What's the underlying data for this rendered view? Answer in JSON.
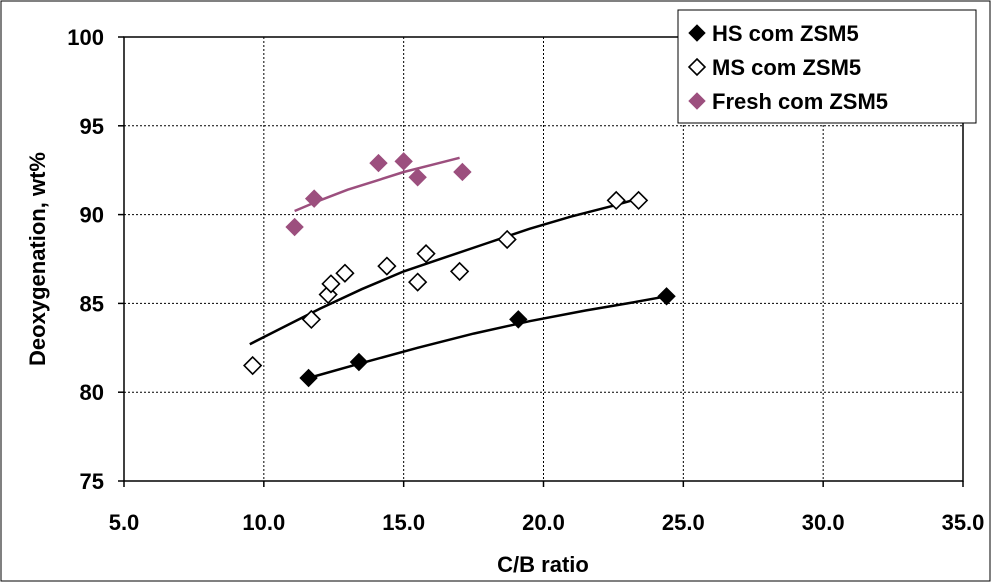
{
  "chart_data": {
    "type": "scatter",
    "title": "",
    "xlabel": "C/B ratio",
    "ylabel": "Deoxygenation, wt%",
    "xlim": [
      5.0,
      35.0
    ],
    "ylim": [
      75,
      100
    ],
    "x_ticks": [
      5.0,
      10.0,
      15.0,
      20.0,
      25.0,
      30.0,
      35.0
    ],
    "x_tick_labels": [
      "5.0",
      "10.0",
      "15.0",
      "20.0",
      "25.0",
      "30.0",
      "35.0"
    ],
    "y_ticks": [
      75,
      80,
      85,
      90,
      95,
      100
    ],
    "y_tick_labels": [
      "75",
      "80",
      "85",
      "90",
      "95",
      "100"
    ],
    "grid": true,
    "legend_position": "top-right",
    "series": [
      {
        "name": "HS com ZSM5",
        "marker": "diamond-filled",
        "color": "#000000",
        "points": [
          [
            11.6,
            80.8
          ],
          [
            13.4,
            81.7
          ],
          [
            19.1,
            84.1
          ],
          [
            24.4,
            85.4
          ]
        ],
        "trend": [
          [
            11.6,
            80.8
          ],
          [
            13.4,
            81.6
          ],
          [
            15.5,
            82.5
          ],
          [
            17.5,
            83.3
          ],
          [
            19.5,
            84.0
          ],
          [
            21.5,
            84.6
          ],
          [
            23.0,
            85.0
          ],
          [
            24.4,
            85.4
          ]
        ]
      },
      {
        "name": "MS com ZSM5",
        "marker": "diamond-open",
        "color": "#000000",
        "points": [
          [
            9.6,
            81.5
          ],
          [
            11.7,
            84.1
          ],
          [
            12.3,
            85.5
          ],
          [
            12.4,
            86.1
          ],
          [
            12.9,
            86.7
          ],
          [
            14.4,
            87.1
          ],
          [
            15.5,
            86.2
          ],
          [
            15.8,
            87.8
          ],
          [
            17.0,
            86.8
          ],
          [
            18.7,
            88.6
          ],
          [
            22.6,
            90.8
          ],
          [
            23.4,
            90.8
          ]
        ],
        "trend": [
          [
            9.5,
            82.7
          ],
          [
            10.5,
            83.5
          ],
          [
            12.0,
            84.7
          ],
          [
            13.5,
            85.8
          ],
          [
            15.0,
            86.8
          ],
          [
            16.5,
            87.6
          ],
          [
            18.0,
            88.4
          ],
          [
            19.5,
            89.2
          ],
          [
            21.0,
            89.9
          ],
          [
            22.5,
            90.5
          ],
          [
            23.4,
            90.9
          ]
        ]
      },
      {
        "name": "Fresh com ZSM5",
        "marker": "diamond-filled",
        "color": "#9c4f7e",
        "points": [
          [
            11.1,
            89.3
          ],
          [
            11.8,
            90.9
          ],
          [
            14.1,
            92.9
          ],
          [
            15.0,
            93.0
          ],
          [
            15.5,
            92.1
          ],
          [
            17.1,
            92.4
          ]
        ],
        "trend": [
          [
            11.1,
            90.2
          ],
          [
            12.0,
            90.8
          ],
          [
            13.0,
            91.4
          ],
          [
            14.0,
            91.9
          ],
          [
            15.0,
            92.4
          ],
          [
            16.0,
            92.8
          ],
          [
            17.0,
            93.2
          ]
        ]
      }
    ]
  }
}
